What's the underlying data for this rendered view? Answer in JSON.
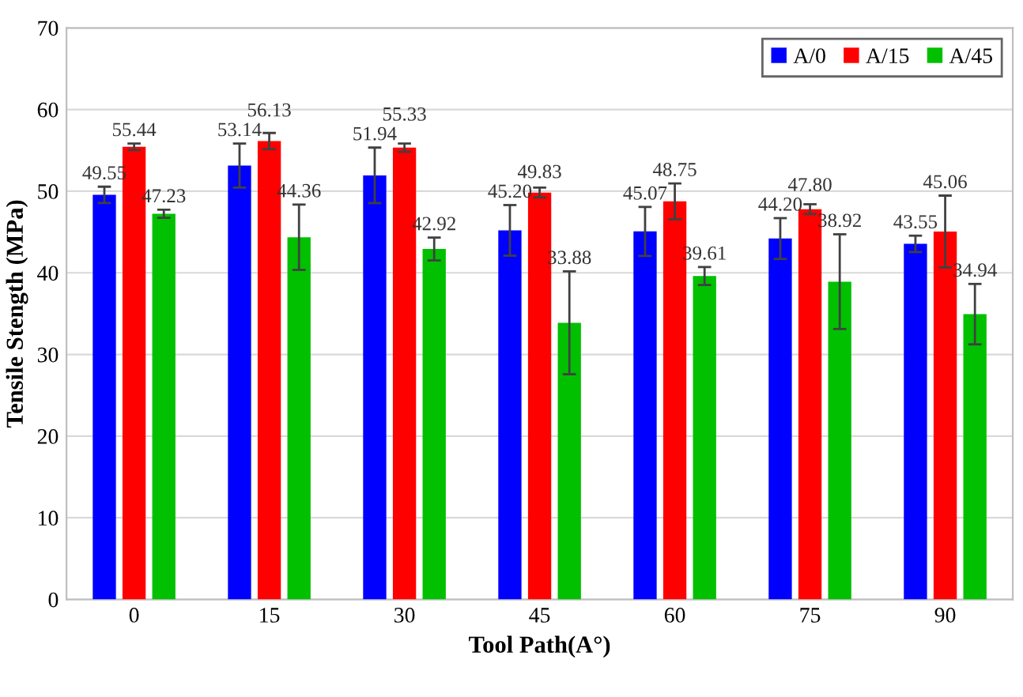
{
  "chart_data": {
    "type": "bar",
    "xlabel": "Tool Path(A°)",
    "ylabel": "Tensile Stength (MPa)",
    "categories": [
      "0",
      "15",
      "30",
      "45",
      "60",
      "75",
      "90"
    ],
    "series": [
      {
        "name": "A/0",
        "color": "#0000ff",
        "values": [
          49.55,
          53.14,
          51.94,
          45.2,
          45.07,
          44.2,
          43.55
        ],
        "errors": [
          1.0,
          2.7,
          3.4,
          3.1,
          3.0,
          2.5,
          1.0
        ],
        "value_labels": [
          "49.55",
          "53.14",
          "51.94",
          "45.20",
          "45.07",
          "44.20",
          "43.55"
        ]
      },
      {
        "name": "A/15",
        "color": "#ff0000",
        "values": [
          55.44,
          56.13,
          55.33,
          49.83,
          48.75,
          47.8,
          45.06
        ],
        "errors": [
          0.4,
          1.0,
          0.5,
          0.6,
          2.2,
          0.6,
          4.4
        ],
        "value_labels": [
          "55.44",
          "56.13",
          "55.33",
          "49.83",
          "48.75",
          "47.80",
          "45.06"
        ]
      },
      {
        "name": "A/45",
        "color": "#00c000",
        "values": [
          47.23,
          44.36,
          42.92,
          33.88,
          39.61,
          38.92,
          34.94
        ],
        "errors": [
          0.5,
          4.0,
          1.4,
          6.3,
          1.1,
          5.8,
          3.7
        ],
        "value_labels": [
          "47.23",
          "44.36",
          "42.92",
          "33.88",
          "39.61",
          "38.92",
          "34.94"
        ]
      }
    ],
    "ylim": [
      0,
      70
    ],
    "yticks": [
      0,
      10,
      20,
      30,
      40,
      50,
      60,
      70
    ],
    "grid": "y",
    "legend": "top right"
  }
}
